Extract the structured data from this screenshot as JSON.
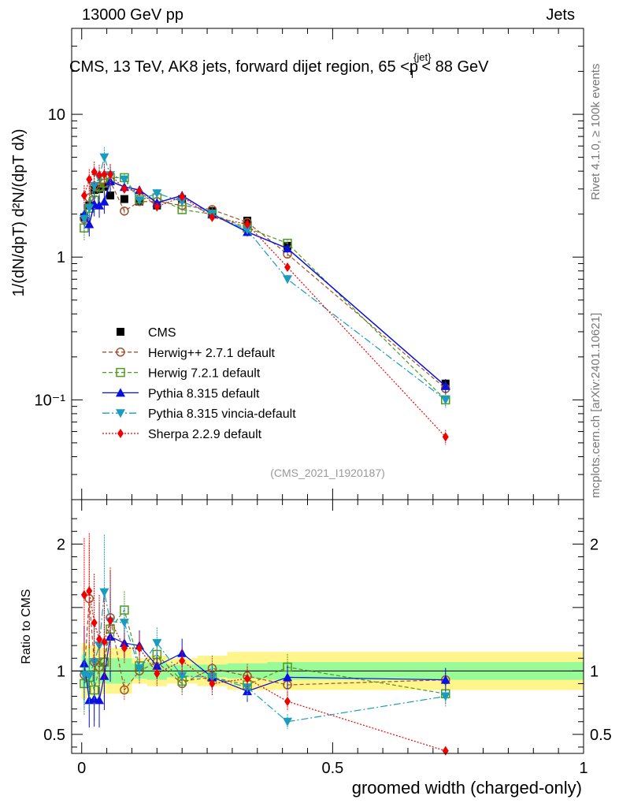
{
  "header": {
    "left": "13000 GeV pp",
    "right": "Jets"
  },
  "side_labels": {
    "top": "Rivet 4.1.0, ≥ 100k events",
    "bottom": "mcplots.cern.ch [arXiv:2401.10621]"
  },
  "chart_data": [
    {
      "type": "line",
      "title": "CMS, 13 TeV, AK8 jets, forward dijet region, 65 <p{jet}T< 88 GeV",
      "ylabel": "1/(dN/dpT) d²N/(dpT dλ)",
      "yscale": "log",
      "ylim": [
        0.02,
        40
      ],
      "xlim": [
        -0.02,
        1.0
      ],
      "yticks": [
        {
          "v": 10,
          "label": "10"
        },
        {
          "v": 1,
          "label": "1"
        },
        {
          "v": 0.1,
          "label": "10⁻¹"
        }
      ],
      "watermark": "(CMS_2021_I1920187)",
      "bins": [
        [
          0,
          0.01
        ],
        [
          0.01,
          0.02
        ],
        [
          0.02,
          0.03
        ],
        [
          0.03,
          0.04
        ],
        [
          0.04,
          0.05
        ],
        [
          0.05,
          0.065
        ],
        [
          0.065,
          0.1
        ],
        [
          0.1,
          0.13
        ],
        [
          0.13,
          0.17
        ],
        [
          0.17,
          0.23
        ],
        [
          0.23,
          0.29
        ],
        [
          0.29,
          0.37
        ],
        [
          0.37,
          0.45
        ],
        [
          0.45,
          1.0
        ]
      ],
      "x": [
        0.005,
        0.015,
        0.025,
        0.035,
        0.045,
        0.057,
        0.085,
        0.115,
        0.15,
        0.2,
        0.26,
        0.33,
        0.41,
        0.725
      ],
      "series": [
        {
          "name": "CMS",
          "values": [
            1.9,
            2.3,
            2.95,
            3.0,
            3.1,
            2.7,
            2.55,
            2.45,
            2.3,
            2.55,
            2.1,
            1.8,
            1.2,
            0.13
          ]
        },
        {
          "name": "Herwig++ 2.7.1 default",
          "values": [
            1.85,
            2.6,
            3.15,
            3.1,
            3.3,
            3.4,
            2.1,
            2.45,
            2.45,
            2.3,
            2.15,
            1.75,
            1.05,
            0.12
          ]
        },
        {
          "name": "Herwig 7.2.1 default",
          "values": [
            1.6,
            2.2,
            2.5,
            3.1,
            3.3,
            3.6,
            3.6,
            2.55,
            2.6,
            2.15,
            2.0,
            1.6,
            1.25,
            0.1
          ]
        },
        {
          "name": "Pythia 8.315 default",
          "values": [
            2.0,
            1.7,
            2.35,
            2.3,
            2.45,
            3.4,
            3.1,
            2.95,
            2.4,
            2.7,
            2.0,
            1.5,
            1.15,
            0.125
          ]
        },
        {
          "name": "Pythia 8.315 vincia-default",
          "values": [
            1.85,
            2.2,
            3.15,
            3.6,
            5.0,
            3.75,
            3.5,
            2.5,
            2.8,
            2.45,
            2.0,
            1.55,
            0.7,
            0.1
          ]
        },
        {
          "name": "Sherpa 2.2.9 default",
          "values": [
            2.7,
            3.5,
            3.95,
            3.75,
            3.8,
            3.8,
            3.0,
            2.9,
            2.25,
            2.65,
            1.9,
            1.7,
            0.85,
            0.055
          ]
        }
      ]
    },
    {
      "type": "line",
      "ylabel": "Ratio to CMS",
      "xlabel": "groomed width (charged-only)",
      "ylim": [
        0.35,
        2.35
      ],
      "xlim": [
        -0.02,
        1.0
      ],
      "yticks": [
        {
          "v": 2,
          "label": "2"
        },
        {
          "v": 1,
          "label": "1"
        },
        {
          "v": 0.5,
          "label": "0.5"
        }
      ],
      "xticks": [
        {
          "v": 0,
          "label": "0"
        },
        {
          "v": 0.5,
          "label": "0.5"
        },
        {
          "v": 1,
          "label": "1"
        }
      ],
      "band_inner": [
        0.13,
        0.1,
        0.1,
        0.1,
        0.1,
        0.1,
        0.1,
        0.06,
        0.07,
        0.05,
        0.05,
        0.06,
        0.07,
        0.07
      ],
      "band_outer": [
        0.22,
        0.2,
        0.2,
        0.2,
        0.18,
        0.18,
        0.18,
        0.1,
        0.12,
        0.1,
        0.12,
        0.15,
        0.15,
        0.15
      ],
      "series": [
        {
          "name": "Herwig++ 2.7.1 default",
          "values": [
            0.97,
            1.57,
            1.07,
            1.03,
            1.07,
            1.42,
            0.85,
            1.0,
            1.07,
            0.9,
            1.02,
            0.96,
            0.89,
            0.93
          ]
        },
        {
          "name": "Herwig 7.2.1 default",
          "values": [
            0.9,
            0.95,
            0.85,
            1.03,
            1.07,
            1.33,
            1.48,
            1.04,
            1.13,
            0.92,
            0.95,
            0.89,
            1.03,
            0.82
          ]
        },
        {
          "name": "Pythia 8.315 default",
          "values": [
            1.06,
            0.77,
            0.78,
            0.77,
            0.96,
            1.27,
            1.22,
            1.2,
            1.04,
            1.14,
            0.95,
            0.84,
            0.95,
            0.93
          ]
        },
        {
          "name": "Pythia 8.315 vincia-default",
          "values": [
            0.97,
            0.96,
            1.07,
            1.2,
            1.62,
            1.39,
            1.38,
            1.02,
            1.22,
            0.96,
            0.95,
            0.87,
            0.6,
            0.8
          ]
        },
        {
          "name": "Sherpa 2.2.9 default",
          "values": [
            1.6,
            1.63,
            1.38,
            1.25,
            1.23,
            1.4,
            1.18,
            1.18,
            0.98,
            1.08,
            0.9,
            0.94,
            0.76,
            0.37
          ]
        }
      ]
    }
  ],
  "styles": {
    "CMS": {
      "color": "#000000",
      "marker": "square",
      "dash": ""
    },
    "Herwig++ 2.7.1 default": {
      "color": "#a0522d",
      "marker": "circle-open",
      "dash": "5,3"
    },
    "Herwig 7.2.1 default": {
      "color": "#4d9a1f",
      "marker": "square-open",
      "dash": "5,3"
    },
    "Pythia 8.315 default": {
      "color": "#0a10e0",
      "marker": "triangle-up",
      "dash": ""
    },
    "Pythia 8.315 vincia-default": {
      "color": "#1a9cc0",
      "marker": "triangle-down",
      "dash": "9,3,2,3"
    },
    "Sherpa 2.2.9 default": {
      "color": "#f00000",
      "marker": "diamond",
      "dash": "2,2"
    }
  },
  "band_colors": {
    "inner": "#98fb98",
    "outer": "#fff58a"
  }
}
